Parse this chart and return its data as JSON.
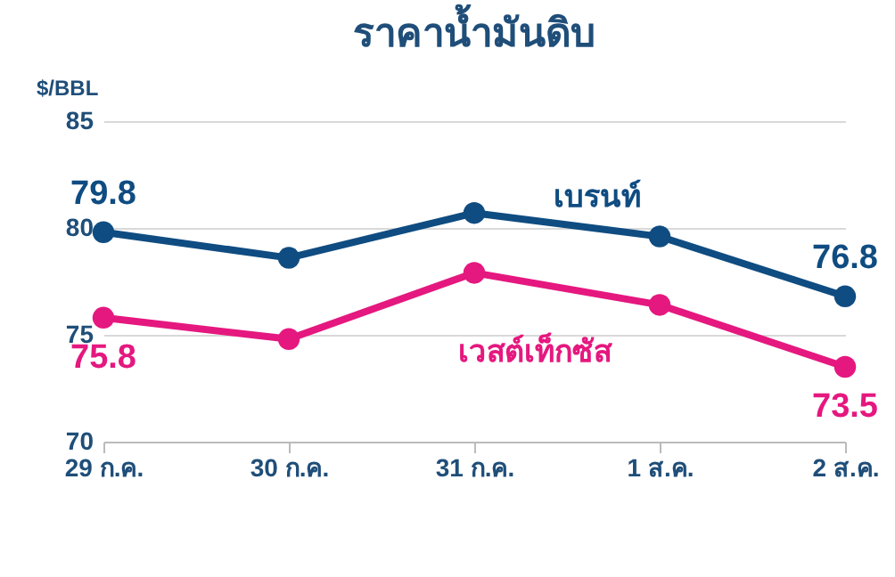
{
  "chart_data": {
    "type": "line",
    "title": "ราคาน้ำมันดิบ",
    "ylabel": "$/BBL",
    "categories": [
      "29 ก.ค.",
      "30 ก.ค.",
      "31 ก.ค.",
      "1 ส.ค.",
      "2 ส.ค."
    ],
    "series": [
      {
        "name": "เบรนท์",
        "color": "#0f4c81",
        "values": [
          79.8,
          78.6,
          80.7,
          79.6,
          76.8
        ],
        "value_labels": [
          "79.8",
          null,
          null,
          null,
          "76.8"
        ]
      },
      {
        "name": "เวสต์เท็กซัส",
        "color": "#e5187f",
        "values": [
          75.8,
          74.8,
          77.9,
          76.4,
          73.5
        ],
        "value_labels": [
          "75.8",
          null,
          null,
          null,
          "73.5"
        ]
      }
    ],
    "ylim": [
      70,
      85
    ],
    "yticks": [
      70,
      75,
      80,
      85
    ],
    "grid": "y",
    "legend": false,
    "marker": "circle",
    "line_style": "solid"
  }
}
